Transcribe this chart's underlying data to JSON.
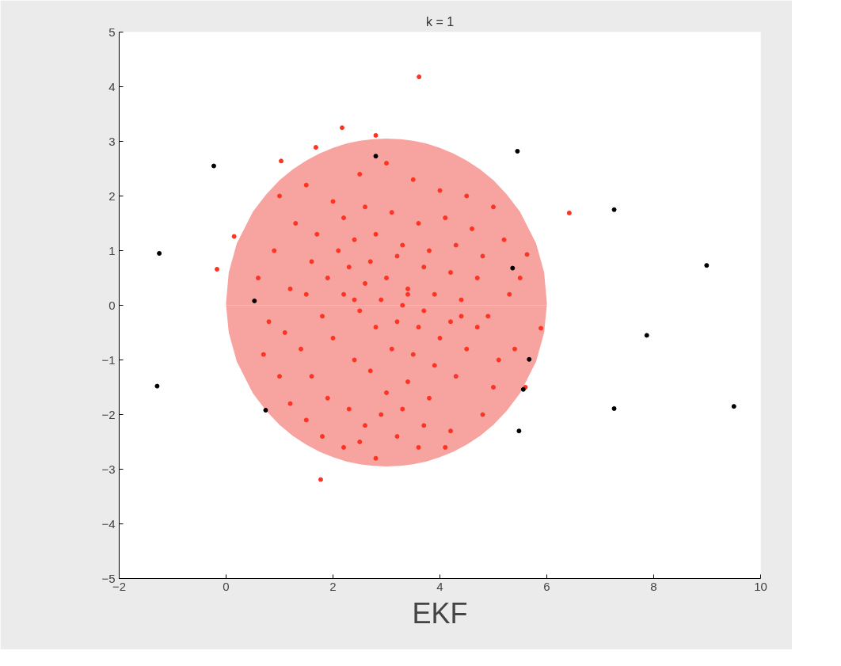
{
  "chart_data": {
    "type": "scatter",
    "title": "k = 1",
    "xlabel": "EKF",
    "xlim": [
      -2,
      10
    ],
    "ylim": [
      -5,
      5
    ],
    "xticks": [
      -2,
      0,
      2,
      4,
      6,
      8,
      10
    ],
    "yticks": [
      -5,
      -4,
      -3,
      -2,
      -1,
      0,
      1,
      2,
      3,
      4,
      5
    ],
    "grid": false,
    "series": [
      {
        "type": "area",
        "color": "#f7a3a0",
        "x": [
          0,
          0.05,
          0.2,
          0.5,
          0.75,
          1,
          1.25,
          1.5,
          1.75,
          2,
          2.25,
          2.5,
          2.75,
          3,
          3.25,
          3.5,
          3.75,
          4,
          4.25,
          4.5,
          4.75,
          5,
          5.25,
          5.5,
          5.8,
          5.95,
          6
        ],
        "values": [
          0.05,
          0.6,
          1.13,
          1.71,
          2.03,
          2.29,
          2.49,
          2.65,
          2.78,
          2.88,
          2.96,
          3.01,
          3.04,
          3.05,
          3.04,
          3.01,
          2.96,
          2.88,
          2.78,
          2.65,
          2.49,
          2.29,
          2.03,
          1.71,
          1.13,
          0.6,
          0.05
        ]
      },
      {
        "type": "area",
        "color": "#f7a3a0",
        "x": [
          0,
          0.05,
          0.2,
          0.5,
          0.75,
          1,
          1.25,
          1.5,
          1.75,
          2,
          2.25,
          2.5,
          2.75,
          3,
          3.25,
          3.5,
          3.75,
          4,
          4.25,
          4.5,
          4.75,
          5,
          5.25,
          5.5,
          5.8,
          5.95,
          6
        ],
        "values": [
          0,
          -0.5,
          -1.03,
          -1.61,
          -1.93,
          -2.19,
          -2.39,
          -2.55,
          -2.68,
          -2.78,
          -2.86,
          -2.91,
          -2.94,
          -2.95,
          -2.94,
          -2.91,
          -2.86,
          -2.78,
          -2.68,
          -2.55,
          -2.39,
          -2.19,
          -1.93,
          -1.61,
          -1.03,
          -0.5,
          0
        ]
      },
      {
        "marker": "circle",
        "color": "#ff3322",
        "x": [
          3.61,
          2.17,
          2.8,
          1.68,
          1.03,
          0.15,
          -0.17,
          6.42,
          5.63,
          1.77,
          5.89,
          1.0,
          1.5,
          2.0,
          2.5,
          3.0,
          3.5,
          4.0,
          4.5,
          5.0,
          0.6,
          0.9,
          1.3,
          1.7,
          2.2,
          2.6,
          3.1,
          3.6,
          4.1,
          4.6,
          5.2,
          5.5,
          0.8,
          1.2,
          1.6,
          2.1,
          2.4,
          2.8,
          3.3,
          3.8,
          4.3,
          4.8,
          5.3,
          0.7,
          1.1,
          1.5,
          1.9,
          2.3,
          2.7,
          3.2,
          3.7,
          4.2,
          4.7,
          5.4,
          1.0,
          1.4,
          1.8,
          2.2,
          2.6,
          3.0,
          3.4,
          3.9,
          4.4,
          4.9,
          5.6,
          1.2,
          1.6,
          2.0,
          2.5,
          2.9,
          3.3,
          3.7,
          4.2,
          4.7,
          5.1,
          1.5,
          1.9,
          2.4,
          2.8,
          3.2,
          3.6,
          4.0,
          4.5,
          5.0,
          1.8,
          2.3,
          2.7,
          3.1,
          3.5,
          3.9,
          4.3,
          4.8,
          2.2,
          2.6,
          3.0,
          3.4,
          3.8,
          4.2,
          2.5,
          2.9,
          3.3,
          3.7,
          4.1,
          2.8,
          3.2,
          3.6,
          2.4,
          3.4,
          4.4
        ],
        "values": [
          4.18,
          3.25,
          3.11,
          2.89,
          2.64,
          1.26,
          0.66,
          1.69,
          0.93,
          -3.19,
          -0.42,
          2.0,
          2.2,
          1.9,
          2.4,
          2.6,
          2.3,
          2.1,
          2.0,
          1.8,
          0.5,
          1.0,
          1.5,
          1.3,
          1.6,
          1.8,
          1.7,
          1.5,
          1.6,
          1.4,
          1.2,
          0.5,
          -0.3,
          0.3,
          0.8,
          1.0,
          1.2,
          1.3,
          1.1,
          1.0,
          1.1,
          0.9,
          0.2,
          -0.9,
          -0.5,
          0.2,
          0.5,
          0.7,
          0.8,
          0.9,
          0.7,
          0.6,
          0.5,
          -0.8,
          -1.3,
          -0.8,
          -0.2,
          0.2,
          0.4,
          0.5,
          0.3,
          0.2,
          0.1,
          -0.2,
          -1.5,
          -1.8,
          -1.3,
          -0.6,
          -0.1,
          0.1,
          0.0,
          -0.1,
          -0.3,
          -0.4,
          -1.0,
          -2.1,
          -1.7,
          -1.0,
          -0.4,
          -0.3,
          -0.4,
          -0.6,
          -0.8,
          -1.5,
          -2.4,
          -1.9,
          -1.2,
          -0.8,
          -0.9,
          -1.1,
          -1.3,
          -2.0,
          -2.6,
          -2.2,
          -1.6,
          -1.4,
          -1.7,
          -2.3,
          -2.5,
          -2.0,
          -1.9,
          -2.2,
          -2.6,
          -2.8,
          -2.4,
          -2.6,
          0.1,
          0.2,
          -0.2
        ]
      },
      {
        "marker": "circle",
        "color": "#000000",
        "x": [
          -0.23,
          -1.25,
          -1.29,
          2.8,
          5.45,
          7.26,
          8.99,
          7.87,
          5.48,
          7.26,
          9.5,
          0.74,
          5.67,
          5.56,
          5.36,
          0.53
        ],
        "values": [
          2.55,
          0.95,
          -1.48,
          2.73,
          2.82,
          1.75,
          0.73,
          -0.55,
          -2.3,
          -1.89,
          -1.85,
          -1.92,
          -0.99,
          -1.54,
          0.68,
          0.08
        ]
      }
    ]
  }
}
